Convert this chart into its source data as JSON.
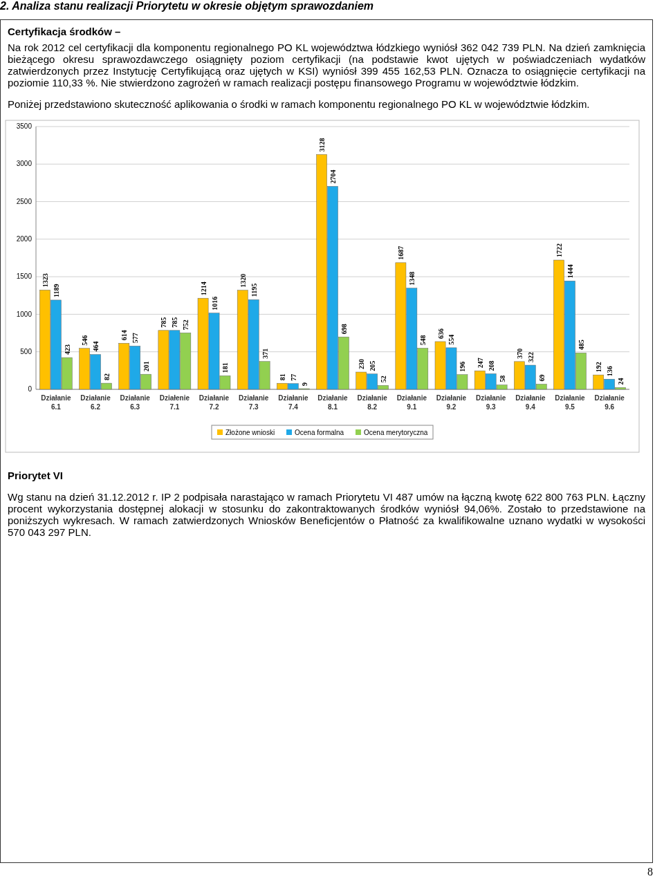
{
  "chart_data": {
    "type": "bar",
    "title": "2.  Analiza stanu realizacji Priorytetu w okresie objętym sprawozdaniem",
    "subtitle": "Certyfikacja środków –",
    "annotations": [
      "Na rok 2012 cel certyfikacji dla komponentu regionalnego PO KL województwa łódzkiego wyniósł 362 042 739 PLN. Na dzień zamknięcia bieżącego okresu sprawozdawczego osiągnięty poziom certyfikacji (na podstawie kwot ujętych w poświadczeniach wydatków zatwierdzonych przez Instytucję Certyfikującą oraz ujętych w KSI) wyniósł 399 455 162,53 PLN. Oznacza to osiągnięcie certyfikacji na poziomie 110,33 %. Nie stwierdzono zagrożeń w ramach realizacji postępu finansowego Programu w województwie łódzkim.",
      "Poniżej przedstawiono skuteczność aplikowania o środki w ramach komponentu regionalnego PO KL w województwie łódzkim.",
      "Priorytet VI",
      "Wg stanu na dzień 31.12.2012 r. IP 2 podpisała narastająco w ramach Priorytetu VI 487 umów na łączną kwotę 622 800 763 PLN. Łączny procent wykorzystania dostępnej alokacji w stosunku do zakontraktowanych środków wyniósł 94,06%. Zostało to przedstawione na poniższych wykresach. W ramach zatwierdzonych Wniosków Beneficjentów o Płatność za kwalifikowalne uznano wydatki w wysokości 570 043 297 PLN.",
      "8"
    ],
    "categories": [
      "Działanie 6.1",
      "Działanie 6.2",
      "Działanie 6.3",
      "Działenie 7.1",
      "Działanie 7.2",
      "Działanie 7.3",
      "Działanie 7.4",
      "Działanie 8.1",
      "Działanie 8.2",
      "Działanie 9.1",
      "Działanie 9.2",
      "Działanie 9.3",
      "Działanie 9.4",
      "Działanie 9.5",
      "Działanie 9.6"
    ],
    "series": [
      {
        "name": "Złożone wnioski",
        "color": "#ffc000",
        "values": [
          1323,
          546,
          614,
          785,
          1214,
          1320,
          81,
          3128,
          230,
          1687,
          636,
          247,
          370,
          1722,
          192
        ]
      },
      {
        "name": "Ocena formalna",
        "color": "#1fa9e8",
        "values": [
          1189,
          464,
          577,
          785,
          1016,
          1195,
          77,
          2704,
          205,
          1348,
          554,
          208,
          322,
          1444,
          136
        ]
      },
      {
        "name": "Ocena merytoryczna",
        "color": "#92d050",
        "values": [
          423,
          82,
          201,
          752,
          181,
          371,
          9,
          698,
          52,
          548,
          196,
          58,
          69,
          485,
          24
        ]
      }
    ],
    "ylim": [
      0,
      3500
    ],
    "yticks": [
      0,
      500,
      1000,
      1500,
      2000,
      2500,
      3000,
      3500
    ],
    "grid": "y",
    "legend": "bottom",
    "data_labels": true
  }
}
